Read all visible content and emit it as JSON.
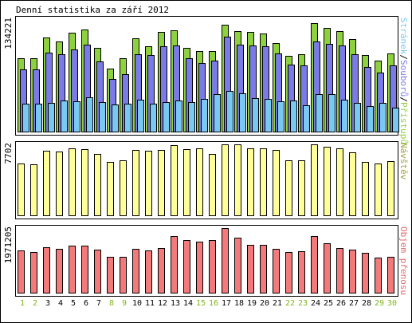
{
  "title": "Denní statistika za září 2012",
  "colors": {
    "hits": "#8ed13e",
    "files": "#7b7be8",
    "pages": "#79c8f2",
    "visits": "#ffff99",
    "kbytes": "#f27a7a",
    "weekend_label": "#7fb51b",
    "weekday_label": "#000000",
    "visits_axis": "#9f9f3f",
    "kbytes_axis": "#e06a6a"
  },
  "chart_data": [
    {
      "type": "bar",
      "panel": "top",
      "axis_max_label": "134221",
      "right_label": {
        "parts": [
          {
            "text": "Stránek",
            "color_key": "pages"
          },
          {
            "text": "/",
            "color_key": "weekday_label"
          },
          {
            "text": "Souborů",
            "color_key": "files"
          },
          {
            "text": "/",
            "color_key": "weekday_label"
          },
          {
            "text": "Přístupů",
            "color_key": "hits"
          }
        ]
      },
      "ylim": [
        0,
        134221
      ],
      "categories": [
        "1",
        "2",
        "3",
        "4",
        "5",
        "6",
        "7",
        "8",
        "9",
        "10",
        "11",
        "12",
        "13",
        "14",
        "15",
        "16",
        "17",
        "18",
        "19",
        "20",
        "21",
        "22",
        "23",
        "24",
        "25",
        "26",
        "27",
        "28",
        "29",
        "30"
      ],
      "weekend": [
        1,
        2,
        8,
        9,
        15,
        16,
        22,
        23,
        29,
        30
      ],
      "series": [
        {
          "name": "Přístupů",
          "values": [
            88000,
            88000,
            112000,
            108000,
            118000,
            122000,
            100000,
            75000,
            88000,
            111000,
            102000,
            119000,
            121000,
            100000,
            96000,
            96000,
            128000,
            120000,
            119000,
            117000,
            106000,
            90000,
            92000,
            129000,
            124000,
            120000,
            110000,
            91000,
            85000,
            93000
          ]
        },
        {
          "name": "Souborů",
          "values": [
            74000,
            74000,
            94000,
            92000,
            98000,
            104000,
            84000,
            63000,
            69000,
            92000,
            91000,
            102000,
            103000,
            88000,
            82000,
            85000,
            113000,
            104000,
            103000,
            102000,
            93000,
            80000,
            79000,
            108000,
            105000,
            103000,
            92000,
            77000,
            70000,
            79000
          ]
        },
        {
          "name": "Stránek",
          "values": [
            33000,
            33000,
            34000,
            37000,
            36000,
            41000,
            35000,
            32000,
            33000,
            38000,
            33000,
            35000,
            37000,
            35000,
            39000,
            45000,
            49000,
            46000,
            40000,
            39000,
            36000,
            37000,
            31000,
            45000,
            45000,
            38000,
            34000,
            30000,
            34000,
            29000
          ]
        }
      ]
    },
    {
      "type": "bar",
      "panel": "middle",
      "axis_max_label": "7702",
      "right_label": {
        "parts": [
          {
            "text": "Návštěv",
            "color_key": "visits_axis"
          }
        ]
      },
      "ylim": [
        0,
        7702
      ],
      "categories": [
        "1",
        "2",
        "3",
        "4",
        "5",
        "6",
        "7",
        "8",
        "9",
        "10",
        "11",
        "12",
        "13",
        "14",
        "15",
        "16",
        "17",
        "18",
        "19",
        "20",
        "21",
        "22",
        "23",
        "24",
        "25",
        "26",
        "27",
        "28",
        "29",
        "30"
      ],
      "series": [
        {
          "name": "Návštěv",
          "values": [
            5600,
            5500,
            7000,
            6900,
            7300,
            7200,
            6700,
            5800,
            6000,
            7100,
            7000,
            7100,
            7600,
            7200,
            7300,
            6700,
            7700,
            7700,
            7300,
            7300,
            7100,
            6000,
            6000,
            7700,
            7400,
            7300,
            6800,
            5800,
            5600,
            5900
          ]
        }
      ]
    },
    {
      "type": "bar",
      "panel": "bottom",
      "axis_max_label": "1971205",
      "right_label": {
        "parts": [
          {
            "text": "Objem přenosu",
            "color_key": "kbytes_axis"
          }
        ]
      },
      "ylim": [
        0,
        1971205
      ],
      "categories": [
        "1",
        "2",
        "3",
        "4",
        "5",
        "6",
        "7",
        "8",
        "9",
        "10",
        "11",
        "12",
        "13",
        "14",
        "15",
        "16",
        "17",
        "18",
        "19",
        "20",
        "21",
        "22",
        "23",
        "24",
        "25",
        "26",
        "27",
        "28",
        "29",
        "30"
      ],
      "series": [
        {
          "name": "Objem přenosu",
          "values": [
            1280000,
            1230000,
            1390000,
            1330000,
            1440000,
            1440000,
            1320000,
            1090000,
            1100000,
            1340000,
            1280000,
            1360000,
            1720000,
            1610000,
            1560000,
            1610000,
            1970000,
            1670000,
            1470000,
            1470000,
            1350000,
            1230000,
            1260000,
            1720000,
            1520000,
            1370000,
            1310000,
            1220000,
            1080000,
            1100000
          ]
        }
      ]
    }
  ]
}
